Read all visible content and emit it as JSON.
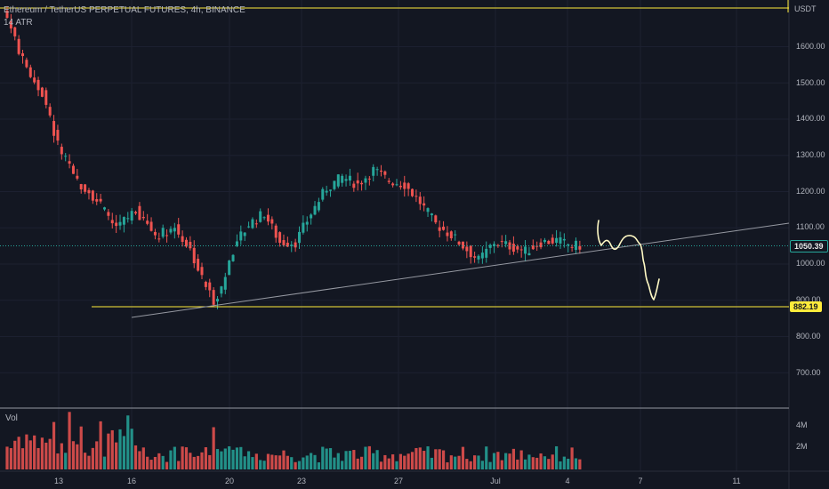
{
  "header": {
    "title": "Ethereum / TetherUS PERPETUAL FUTURES, 4h, BINANCE",
    "indicator": "14 ATR"
  },
  "price_axis": {
    "unit": "USDT",
    "ticks": [
      "1600.00",
      "1500.00",
      "1400.00",
      "1300.00",
      "1200.00",
      "1100.00",
      "1000.00",
      "900.00",
      "800.00",
      "700.00"
    ],
    "current_price": "1050.39",
    "support_price": "882.19"
  },
  "volume_pane": {
    "label": "Vol",
    "ticks": [
      "4M",
      "2M"
    ]
  },
  "time_axis": {
    "ticks": [
      "13",
      "16",
      "20",
      "23",
      "27",
      "Jul",
      "4",
      "7",
      "11"
    ]
  },
  "colors": {
    "background": "#131722",
    "up": "#26a69a",
    "down": "#ef5350",
    "support_line": "#ffeb3b",
    "trendline": "#9598a1",
    "drawing": "#fff9c4",
    "current_price_line": "#26a69a"
  },
  "chart_data": {
    "type": "candlestick",
    "symbol": "Ethereum / TetherUS PERPETUAL FUTURES",
    "interval": "4h",
    "exchange": "BINANCE",
    "y_unit": "USDT",
    "ylim": [
      620,
      1720
    ],
    "current_price": 1050.39,
    "support_level": 882.19,
    "close_waypoints": [
      {
        "i": 0,
        "close": 1680
      },
      {
        "i": 4,
        "close": 1560
      },
      {
        "i": 9,
        "close": 1470
      },
      {
        "i": 13,
        "close": 1330
      },
      {
        "i": 17,
        "close": 1240
      },
      {
        "i": 22,
        "close": 1190
      },
      {
        "i": 28,
        "close": 1100
      },
      {
        "i": 33,
        "close": 1150
      },
      {
        "i": 38,
        "close": 1080
      },
      {
        "i": 43,
        "close": 1100
      },
      {
        "i": 47,
        "close": 1040
      },
      {
        "i": 50,
        "close": 960
      },
      {
        "i": 53,
        "close": 900
      },
      {
        "i": 55,
        "close": 935
      },
      {
        "i": 58,
        "close": 1040
      },
      {
        "i": 62,
        "close": 1110
      },
      {
        "i": 66,
        "close": 1140
      },
      {
        "i": 70,
        "close": 1060
      },
      {
        "i": 74,
        "close": 1060
      },
      {
        "i": 78,
        "close": 1140
      },
      {
        "i": 82,
        "close": 1210
      },
      {
        "i": 86,
        "close": 1240
      },
      {
        "i": 90,
        "close": 1220
      },
      {
        "i": 94,
        "close": 1260
      },
      {
        "i": 98,
        "close": 1230
      },
      {
        "i": 102,
        "close": 1220
      },
      {
        "i": 106,
        "close": 1170
      },
      {
        "i": 110,
        "close": 1110
      },
      {
        "i": 114,
        "close": 1080
      },
      {
        "i": 118,
        "close": 1040
      },
      {
        "i": 121,
        "close": 1010
      },
      {
        "i": 125,
        "close": 1060
      },
      {
        "i": 129,
        "close": 1050
      },
      {
        "i": 133,
        "close": 1035
      },
      {
        "i": 137,
        "close": 1060
      },
      {
        "i": 141,
        "close": 1065
      },
      {
        "i": 145,
        "close": 1050
      },
      {
        "i": 147,
        "close": 1050.39
      }
    ],
    "x_ticks": [
      "13",
      "16",
      "20",
      "23",
      "27",
      "Jul",
      "4",
      "7",
      "11"
    ],
    "volume_ticks": [
      "4M",
      "2M"
    ],
    "trendline": [
      {
        "i": 30,
        "price": 870
      },
      {
        "i": 205,
        "price": 1110
      }
    ]
  }
}
